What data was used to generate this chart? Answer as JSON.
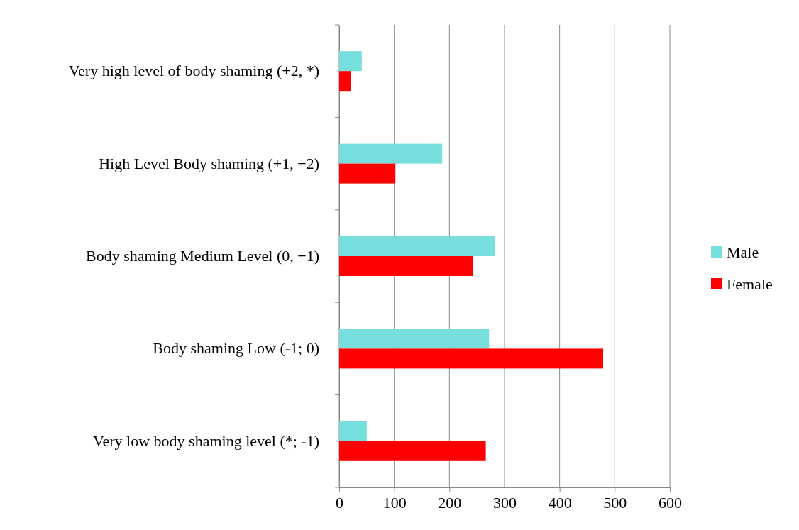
{
  "chart_data": {
    "type": "bar",
    "orientation": "horizontal",
    "categories": [
      "Very high level of body shaming (+2, *)",
      "High Level Body shaming (+1, +2)",
      "Body shaming Medium Level (0, +1)",
      "Body shaming Low (-1; 0)",
      "Very low body shaming level (*; -1)"
    ],
    "series": [
      {
        "name": "Male",
        "color": "#77dede",
        "values": [
          41,
          187,
          282,
          272,
          50
        ]
      },
      {
        "name": "Female",
        "color": "#ff0000",
        "values": [
          21,
          102,
          243,
          479,
          266
        ]
      }
    ],
    "xlim": [
      0,
      600
    ],
    "xticks": [
      0,
      100,
      200,
      300,
      400,
      500,
      600
    ],
    "grid": "x",
    "legend": "right"
  }
}
